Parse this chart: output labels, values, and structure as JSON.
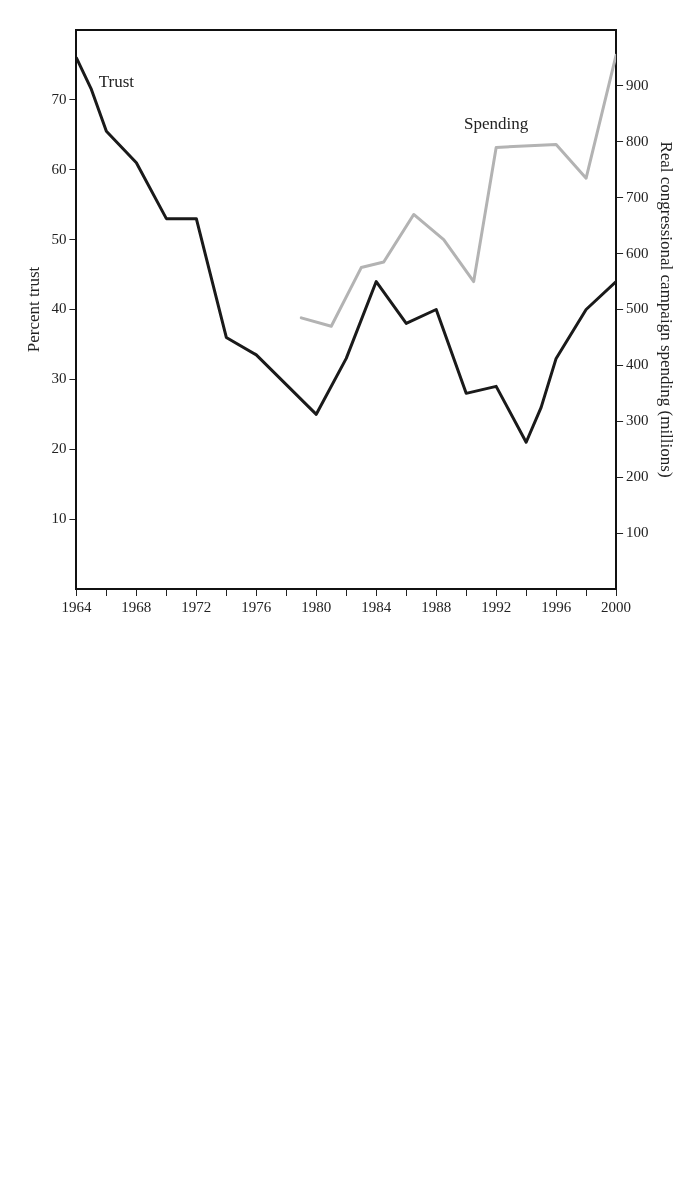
{
  "chart_data": {
    "type": "line",
    "ylabel": "Percent trust",
    "y2label": "Real congressional campaign spending (millions)",
    "xlim": [
      1964,
      2000
    ],
    "xticks": [
      1964,
      {
        "value": 1966,
        "label": null
      },
      1968,
      {
        "value": 1970,
        "label": null
      },
      1972,
      {
        "value": 1974,
        "label": null
      },
      1976,
      {
        "value": 1978,
        "label": null
      },
      1980,
      {
        "value": 1982,
        "label": null
      },
      1984,
      {
        "value": 1986,
        "label": null
      },
      1988,
      {
        "value": 1990,
        "label": null
      },
      1992,
      {
        "value": 1994,
        "label": null
      },
      1996,
      {
        "value": 1998,
        "label": null
      },
      2000
    ],
    "ylim": [
      0,
      80
    ],
    "yticks": [
      10,
      20,
      30,
      40,
      50,
      60,
      70
    ],
    "y2lim": [
      0,
      1000
    ],
    "y2ticks": [
      100,
      200,
      300,
      400,
      500,
      600,
      700,
      800,
      900
    ],
    "grid": false,
    "legend": false,
    "marker": "none",
    "line_style": "solid",
    "series": [
      {
        "name": "Trust",
        "color": "#1a1a1a",
        "x": [
          1964,
          1965,
          1966,
          1968,
          1970,
          1972,
          1974,
          1976,
          1980,
          1982,
          1984,
          1986,
          1988,
          1990,
          1992,
          1994,
          1995,
          1996,
          1998,
          2000
        ],
        "values": [
          76,
          71.5,
          65.5,
          61,
          53,
          53,
          36,
          33.5,
          25,
          33,
          44,
          38,
          40,
          28,
          29,
          21,
          26,
          33,
          40,
          44
        ]
      },
      {
        "name": "Spending",
        "color": "#b3b3b3",
        "axis": "y2",
        "x": [
          1979,
          1981,
          1983,
          1984.5,
          1986.5,
          1988.5,
          1990.5,
          1992,
          1996,
          1998,
          2000
        ],
        "values": [
          485,
          470,
          575,
          585,
          670,
          625,
          550,
          790,
          795,
          735,
          955
        ]
      }
    ]
  }
}
